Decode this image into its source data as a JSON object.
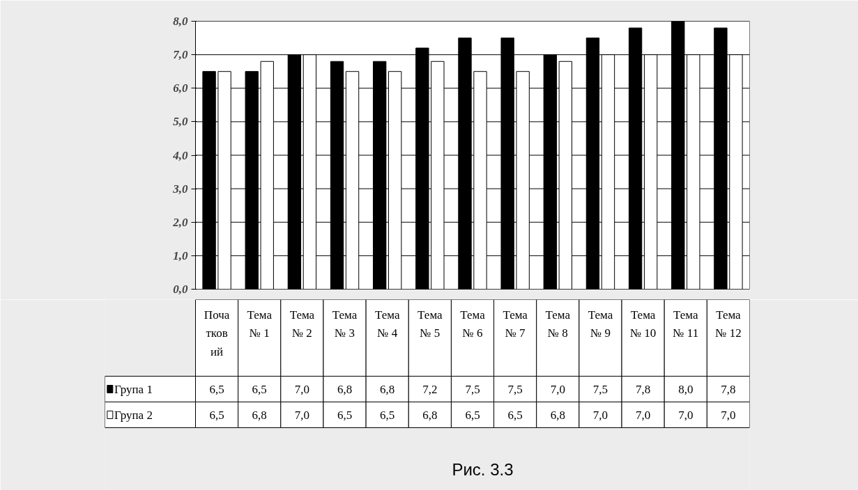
{
  "chart_data": {
    "type": "bar",
    "categories": [
      "Початковий",
      "Тема № 1",
      "Тема № 2",
      "Тема № 3",
      "Тема № 4",
      "Тема № 5",
      "Тема № 6",
      "Тема № 7",
      "Тема № 8",
      "Тема № 9",
      "Тема № 10",
      "Тема № 11",
      "Тема № 12"
    ],
    "series": [
      {
        "name": "Група 1",
        "color": "#000000",
        "values": [
          6.5,
          6.5,
          7.0,
          6.8,
          6.8,
          7.2,
          7.5,
          7.5,
          7.0,
          7.5,
          7.8,
          8.0,
          7.8
        ],
        "value_labels": [
          "6,5",
          "6,5",
          "7,0",
          "6,8",
          "6,8",
          "7,2",
          "7,5",
          "7,5",
          "7,0",
          "7,5",
          "7,8",
          "8,0",
          "7,8"
        ]
      },
      {
        "name": "Група 2",
        "color": "#ffffff",
        "values": [
          6.5,
          6.8,
          7.0,
          6.5,
          6.5,
          6.8,
          6.5,
          6.5,
          6.8,
          7.0,
          7.0,
          7.0,
          7.0
        ],
        "value_labels": [
          "6,5",
          "6,8",
          "7,0",
          "6,5",
          "6,5",
          "6,8",
          "6,5",
          "6,5",
          "6,8",
          "7,0",
          "7,0",
          "7,0",
          "7,0"
        ]
      }
    ],
    "ylim": [
      0,
      8
    ],
    "yticks": [
      {
        "value": 0,
        "label": "0,0"
      },
      {
        "value": 1,
        "label": "1,0"
      },
      {
        "value": 2,
        "label": "2,0"
      },
      {
        "value": 3,
        "label": "3,0"
      },
      {
        "value": 4,
        "label": "4,0"
      },
      {
        "value": 5,
        "label": "5,0"
      },
      {
        "value": 6,
        "label": "6,0"
      },
      {
        "value": 7,
        "label": "7,0"
      },
      {
        "value": 8,
        "label": "8,0"
      }
    ],
    "grid": "y",
    "legend": "bottom left",
    "annotations": [
      "Рис. 3.3"
    ]
  }
}
